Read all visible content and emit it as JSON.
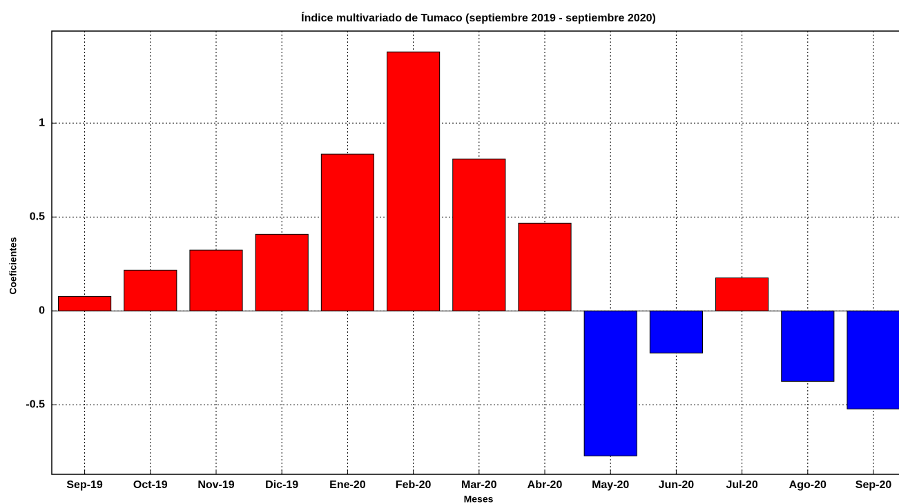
{
  "chart_data": {
    "type": "bar",
    "title": "Índice multivariado de Tumaco (septiembre 2019 - septiembre 2020)",
    "xlabel": "Meses",
    "ylabel": "Coeficientes",
    "categories": [
      "Sep-19",
      "Oct-19",
      "Nov-19",
      "Dic-19",
      "Ene-20",
      "Feb-20",
      "Mar-20",
      "Abr-20",
      "May-20",
      "Jun-20",
      "Jul-20",
      "Ago-20",
      "Sep-20"
    ],
    "values": [
      0.077,
      0.217,
      0.324,
      0.408,
      0.835,
      1.379,
      0.809,
      0.467,
      -0.772,
      -0.224,
      0.176,
      -0.375,
      -0.522
    ],
    "colors": [
      "#ff0000",
      "#ff0000",
      "#ff0000",
      "#ff0000",
      "#ff0000",
      "#ff0000",
      "#ff0000",
      "#ff0000",
      "#0000ff",
      "#0000ff",
      "#ff0000",
      "#0000ff",
      "#0000ff"
    ],
    "ylim": [
      -0.87,
      1.49
    ],
    "yticks": [
      -0.5,
      0,
      0.5,
      1
    ],
    "grid": true
  }
}
